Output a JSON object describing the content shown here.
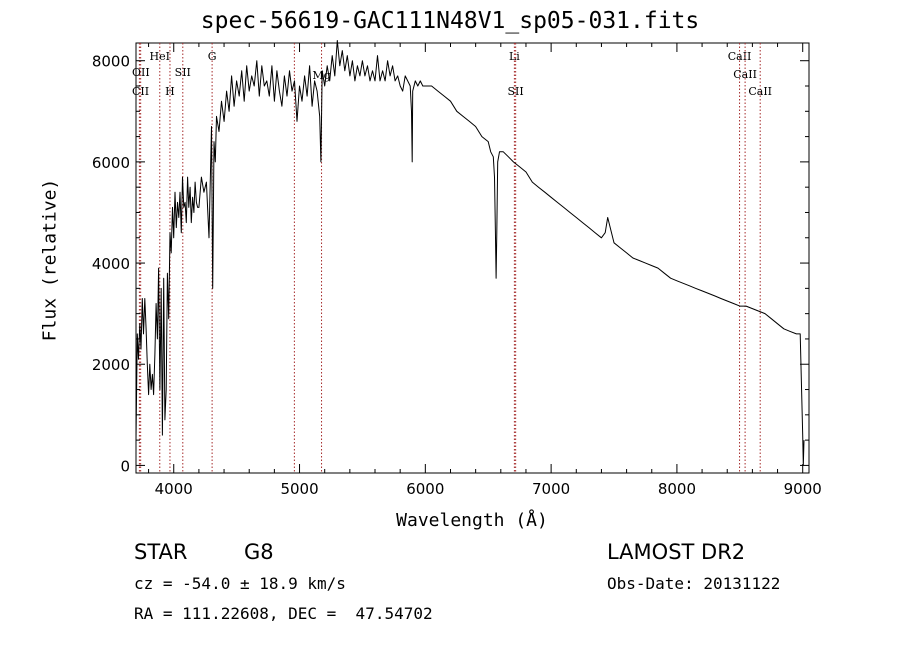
{
  "title": "spec-56619-GAC111N48V1_sp05-031.fits",
  "info": {
    "class": "STAR",
    "subclass": "G8",
    "survey": "LAMOST DR2",
    "redshift": "cz = -54.0 ± 18.9 km/s",
    "obs_date": "Obs-Date: 20131122",
    "coords": "RA = 111.22608, DEC =  47.54702"
  },
  "chart_data": {
    "type": "line",
    "title": "spec-56619-GAC111N48V1_sp05-031.fits",
    "xlabel": "Wavelength (Å)",
    "ylabel": "Flux (relative)",
    "xlim": [
      3700,
      9050
    ],
    "ylim": [
      -150,
      8350
    ],
    "xticks": [
      4000,
      5000,
      6000,
      7000,
      8000,
      9000
    ],
    "yticks": [
      0,
      2000,
      4000,
      6000,
      8000
    ],
    "grid": false,
    "line_color": "#000000",
    "marker_color": "#a52a2a",
    "series": [
      {
        "x": [
          3700,
          3710,
          3720,
          3730,
          3740,
          3750,
          3760,
          3770,
          3780,
          3790,
          3800,
          3810,
          3820,
          3830,
          3840,
          3850,
          3860,
          3870,
          3880,
          3890,
          3900,
          3910,
          3920,
          3930,
          3940,
          3950,
          3960,
          3970,
          3980,
          3990,
          4000,
          4010,
          4020,
          4030,
          4040,
          4050,
          4060,
          4070,
          4080,
          4090,
          4100,
          4110,
          4120,
          4130,
          4140,
          4150,
          4160,
          4170,
          4180,
          4190,
          4200,
          4220,
          4240,
          4260,
          4280,
          4300,
          4310,
          4320,
          4330,
          4340,
          4360,
          4380,
          4400,
          4420,
          4440,
          4460,
          4480,
          4500,
          4520,
          4540,
          4560,
          4580,
          4600,
          4620,
          4640,
          4660,
          4680,
          4700,
          4720,
          4740,
          4760,
          4780,
          4800,
          4820,
          4840,
          4860,
          4880,
          4900,
          4920,
          4940,
          4960,
          4980,
          5000,
          5020,
          5040,
          5060,
          5080,
          5100,
          5120,
          5140,
          5160,
          5170,
          5180,
          5200,
          5220,
          5240,
          5260,
          5280,
          5300,
          5320,
          5340,
          5360,
          5380,
          5400,
          5420,
          5440,
          5460,
          5480,
          5500,
          5520,
          5540,
          5560,
          5580,
          5600,
          5620,
          5640,
          5660,
          5680,
          5700,
          5720,
          5740,
          5760,
          5780,
          5800,
          5820,
          5840,
          5860,
          5880,
          5890,
          5896,
          5900,
          5920,
          5940,
          5960,
          5980,
          6000,
          6050,
          6100,
          6150,
          6200,
          6250,
          6300,
          6350,
          6400,
          6450,
          6500,
          6520,
          6540,
          6550,
          6558,
          6563,
          6568,
          6575,
          6590,
          6620,
          6660,
          6700,
          6750,
          6800,
          6850,
          6900,
          6950,
          7000,
          7050,
          7100,
          7150,
          7200,
          7250,
          7300,
          7350,
          7400,
          7430,
          7450,
          7500,
          7550,
          7600,
          7650,
          7700,
          7750,
          7800,
          7850,
          7900,
          7950,
          8000,
          8050,
          8100,
          8150,
          8200,
          8250,
          8300,
          8350,
          8400,
          8450,
          8500,
          8550,
          8600,
          8650,
          8700,
          8750,
          8800,
          8850,
          8900,
          8950,
          8980,
          9000,
          9005,
          9010
        ],
        "y": [
          500,
          2600,
          2100,
          2800,
          2300,
          3300,
          2600,
          3300,
          2700,
          2000,
          1400,
          2000,
          1500,
          1800,
          1400,
          2200,
          3200,
          2500,
          3900,
          1500,
          3500,
          600,
          3700,
          900,
          1500,
          3800,
          2900,
          4600,
          4200,
          5100,
          4500,
          5400,
          4700,
          5200,
          4900,
          5400,
          4600,
          5700,
          5100,
          5200,
          4800,
          5700,
          5100,
          5500,
          4800,
          5300,
          5000,
          5600,
          5200,
          5100,
          5100,
          5700,
          5400,
          5600,
          4500,
          6700,
          3500,
          6400,
          6000,
          6900,
          6600,
          7200,
          6800,
          7400,
          7000,
          7700,
          7100,
          7600,
          7300,
          7800,
          7200,
          7900,
          7400,
          7700,
          7500,
          8000,
          7300,
          7900,
          7500,
          7600,
          7300,
          7900,
          7200,
          7800,
          7400,
          7100,
          7700,
          7300,
          7800,
          7400,
          7600,
          6800,
          7500,
          7200,
          7700,
          7300,
          7900,
          7100,
          7600,
          7400,
          6900,
          6000,
          7800,
          7500,
          7900,
          7600,
          8100,
          7700,
          8400,
          7900,
          8200,
          7800,
          8100,
          7700,
          8000,
          7600,
          7900,
          7700,
          8000,
          7700,
          7900,
          7600,
          7800,
          7600,
          8100,
          7600,
          7800,
          7600,
          8000,
          7700,
          7900,
          7600,
          7700,
          7500,
          7400,
          7700,
          7600,
          7500,
          7000,
          6000,
          7400,
          7600,
          7500,
          7600,
          7500,
          7500,
          7500,
          7400,
          7300,
          7200,
          7000,
          6900,
          6800,
          6700,
          6500,
          6400,
          6200,
          6100,
          5700,
          4500,
          3700,
          4600,
          6000,
          6200,
          6200,
          6100,
          6000,
          5900,
          5800,
          5600,
          5500,
          5400,
          5300,
          5200,
          5100,
          5000,
          4900,
          4800,
          4700,
          4600,
          4500,
          4600,
          4900,
          4400,
          4300,
          4200,
          4100,
          4050,
          4000,
          3950,
          3900,
          3800,
          3700,
          3650,
          3600,
          3550,
          3500,
          3450,
          3400,
          3350,
          3300,
          3250,
          3200,
          3150,
          3150,
          3100,
          3050,
          3000,
          2900,
          2800,
          2700,
          2650,
          2600,
          2600,
          600,
          0,
          500
        ]
      }
    ],
    "line_markers": [
      {
        "label": "OII",
        "x": 3727
      },
      {
        "label": "CII",
        "x": 3737
      },
      {
        "label": "HeI",
        "x": 3889
      },
      {
        "label": "H",
        "x": 3970
      },
      {
        "label": "SII",
        "x": 4072
      },
      {
        "label": "G",
        "x": 4305
      },
      {
        "label": "",
        "x": 4959
      },
      {
        "label": "Mg",
        "x": 5175
      },
      {
        "label": "Li",
        "x": 6708
      },
      {
        "label": "SII",
        "x": 6718
      },
      {
        "label": "CaII",
        "x": 8498
      },
      {
        "label": "CaII",
        "x": 8542
      },
      {
        "label": "CaII",
        "x": 8662
      }
    ]
  }
}
